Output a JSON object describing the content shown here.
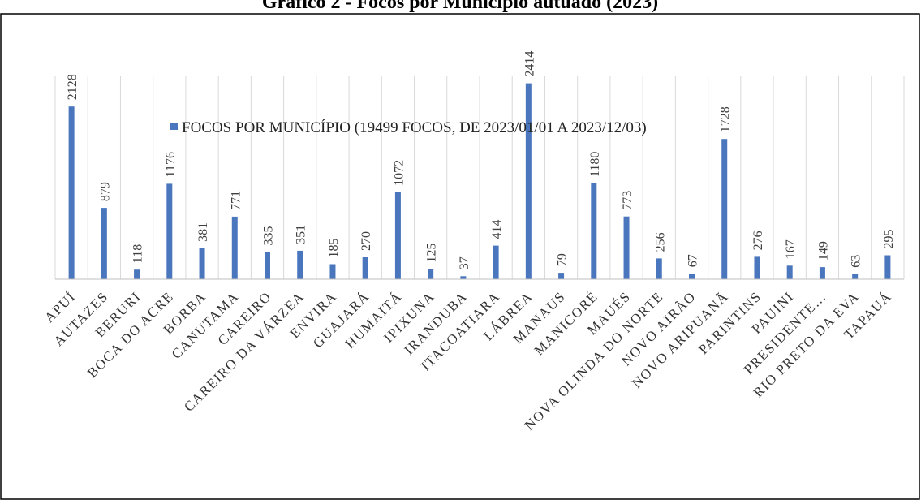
{
  "page_title": "Gráfico 2 - Focos por Município autuado (2023)",
  "chart_data": {
    "type": "bar",
    "categories": [
      "APUÍ",
      "AUTAZES",
      "BERURI",
      "BOCA DO ACRE",
      "BORBA",
      "CANUTAMA",
      "CAREIRO",
      "CAREIRO DA VÁRZEA",
      "ENVIRA",
      "GUAJARÁ",
      "HUMAITÁ",
      "IPIXUNA",
      "IRANDUBA",
      "ITACOATIARA",
      "LÁBREA",
      "MANAUS",
      "MANICORÉ",
      "MAUÉS",
      "NOVA OLINDA DO NORTE",
      "NOVO AIRÃO",
      "NOVO ARIPUANÃ",
      "PARINTINS",
      "PAUINI",
      "PRESIDENTE…",
      "RIO PRETO DA EVA",
      "TAPAUÁ"
    ],
    "series": [
      {
        "name": "FOCOS POR MUNICÍPIO (19499 FOCOS, DE 2023/01/01 A 2023/12/03)",
        "values": [
          2128,
          879,
          118,
          1176,
          381,
          771,
          335,
          351,
          185,
          270,
          1072,
          125,
          37,
          414,
          2414,
          79,
          1180,
          773,
          256,
          67,
          1728,
          276,
          167,
          149,
          63,
          295
        ],
        "labels": [
          "2128",
          "879",
          "118",
          "1176",
          "381",
          "771",
          "335",
          "351",
          "185",
          "270",
          "1072",
          "125",
          "37",
          "414",
          "2414",
          "79",
          "1180",
          "773",
          "256",
          "67",
          "1728",
          "276",
          "167",
          "149",
          "63",
          "295"
        ]
      }
    ],
    "title": "",
    "xlabel": "",
    "ylabel": "",
    "ylim": [
      0,
      2500
    ],
    "grid": "vertical",
    "legend_position": "top-center",
    "bar_color": "#4a76bd",
    "grid_color": "#d9d9d9",
    "border_color": "#000000"
  }
}
